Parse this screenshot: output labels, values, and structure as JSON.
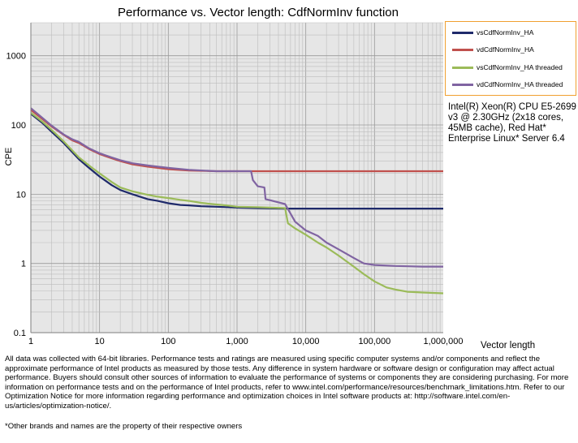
{
  "chart_data": {
    "type": "line",
    "title": "Performance vs. Vector length: CdfNormInv function",
    "xlabel": "Vector length",
    "ylabel": "CPE",
    "x_scale": "log",
    "y_scale": "log",
    "xlim": [
      1,
      1000000
    ],
    "ylim": [
      0.1,
      3000
    ],
    "x_ticks": [
      "1",
      "10",
      "100",
      "1,000",
      "10,000",
      "100,000",
      "1,000,000"
    ],
    "y_ticks": [
      "0.1",
      "1",
      "10",
      "100",
      "1000"
    ],
    "grid": true,
    "legend_position": "top-right",
    "series": [
      {
        "name": "vsCdfNormInv_HA",
        "color": "#1f2a6b",
        "x": [
          1,
          1.5,
          2,
          3,
          5,
          7,
          10,
          15,
          20,
          30,
          50,
          70,
          100,
          150,
          200,
          300,
          500,
          700,
          1000,
          2000,
          5000,
          7000,
          10000,
          20000,
          50000,
          100000,
          200000,
          500000,
          1000000
        ],
        "y": [
          145,
          105,
          80,
          55,
          32,
          24,
          18,
          13.5,
          11.5,
          10,
          8.5,
          8,
          7.4,
          7,
          6.9,
          6.7,
          6.6,
          6.5,
          6.4,
          6.3,
          6.2,
          6.2,
          6.2,
          6.2,
          6.2,
          6.2,
          6.2,
          6.2,
          6.2
        ]
      },
      {
        "name": "vdCdfNormInv_HA",
        "color": "#c0504d",
        "x": [
          1,
          1.5,
          2,
          3,
          4,
          5,
          7,
          10,
          15,
          20,
          30,
          50,
          70,
          100,
          200,
          500,
          1000,
          2000,
          5000,
          10000,
          50000,
          100000,
          500000,
          1000000
        ],
        "y": [
          165,
          120,
          95,
          72,
          60,
          55,
          45,
          38,
          33,
          30,
          27,
          25,
          24,
          23,
          22,
          21.5,
          21.5,
          21.5,
          21.5,
          21.5,
          21.5,
          21.5,
          21.5,
          21.5
        ]
      },
      {
        "name": "vsCdfNormInv_HA threaded",
        "color": "#9bbb59",
        "x": [
          1,
          1.5,
          2,
          3,
          5,
          7,
          10,
          15,
          20,
          30,
          50,
          70,
          100,
          150,
          200,
          300,
          500,
          700,
          1000,
          2000,
          3000,
          5000,
          5500,
          7000,
          10000,
          15000,
          20000,
          30000,
          50000,
          70000,
          100000,
          150000,
          200000,
          300000,
          500000,
          1000000
        ],
        "y": [
          150,
          110,
          85,
          58,
          34,
          26,
          20,
          15,
          12.5,
          11,
          9.8,
          9.2,
          8.8,
          8.3,
          8,
          7.5,
          7.1,
          6.9,
          6.6,
          6.5,
          6.4,
          6.3,
          3.8,
          3.2,
          2.6,
          2.0,
          1.7,
          1.3,
          0.9,
          0.7,
          0.55,
          0.45,
          0.42,
          0.39,
          0.38,
          0.37
        ]
      },
      {
        "name": "vdCdfNormInv_HA threaded",
        "color": "#8064a2",
        "x": [
          1,
          1.5,
          2,
          3,
          4,
          5,
          7,
          10,
          15,
          20,
          30,
          50,
          70,
          100,
          200,
          500,
          1000,
          1600,
          1700,
          2000,
          2500,
          2600,
          3000,
          5000,
          7000,
          10000,
          15000,
          20000,
          30000,
          50000,
          70000,
          100000,
          200000,
          500000,
          1000000
        ],
        "y": [
          175,
          125,
          98,
          73,
          62,
          57,
          46,
          39,
          34,
          31,
          28,
          26,
          25,
          24,
          22.5,
          21.5,
          21.5,
          21.5,
          16,
          13,
          12.5,
          8.5,
          8.2,
          7.2,
          4.0,
          3.0,
          2.5,
          2.0,
          1.6,
          1.2,
          1.0,
          0.95,
          0.92,
          0.9,
          0.9
        ]
      }
    ]
  },
  "cpu_note": "Intel(R) Xeon(R) CPU E5-2699 v3 @ 2.30GHz (2x18 cores, 45MB cache), Red Hat* Enterprise Linux* Server 6.4",
  "footnote": "All data was collected with 64-bit libraries. Performance tests and ratings are measured using specific computer systems and/or components and reflect the approximate performance of Intel products as measured by those tests. Any difference in system hardware or software design or configuration may affect actual performance. Buyers should consult other sources of information to evaluate the performance of systems or components they are considering purchasing. For more information on performance tests and on the performance of Intel products, refer to www.intel.com/performance/resources/benchmark_limitations.htm. Refer to our Optimization Notice for more information regarding performance and optimization choices in Intel software products at: http://software.intel.com/en-us/articles/optimization-notice/.",
  "footnote_brands": "*Other brands and names are the property of their respective owners"
}
